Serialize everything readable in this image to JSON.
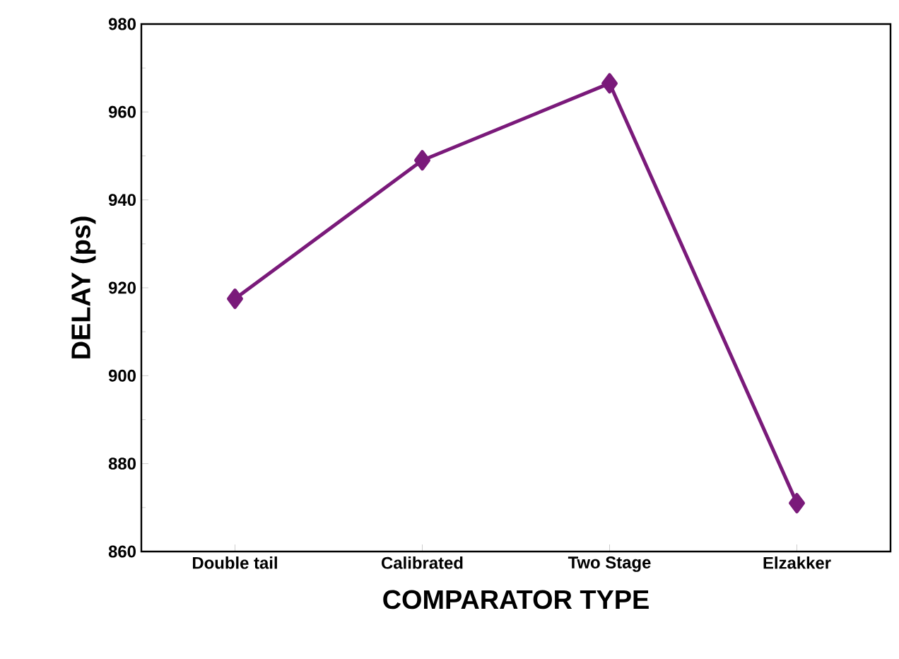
{
  "chart_data": {
    "type": "line",
    "xlabel": "COMPARATOR TYPE",
    "ylabel": "DELAY (ps)",
    "categories": [
      "Double tail",
      "Calibrated",
      "Two Stage",
      "Elzakker"
    ],
    "series": [
      {
        "color": "#7a1a7a",
        "values": [
          917.5,
          949,
          966.5,
          871
        ]
      }
    ],
    "ylim": [
      860,
      980
    ],
    "yticks": [
      860,
      880,
      900,
      920,
      940,
      960,
      980
    ],
    "marker": "diamond",
    "line_style": "solid"
  }
}
